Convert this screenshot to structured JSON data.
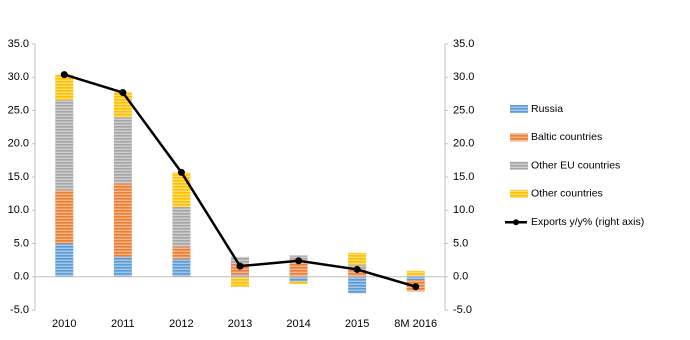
{
  "chart_data": {
    "type": "bar-line",
    "categories": [
      "2010",
      "2011",
      "2012",
      "2013",
      "2014",
      "2015",
      "8M 2016"
    ],
    "series": [
      {
        "name": "Russia",
        "color": "#5b9bd5",
        "values": [
          5.0,
          3.0,
          2.7,
          0.3,
          -0.7,
          -2.5,
          -0.5
        ]
      },
      {
        "name": "Baltic countries",
        "color": "#ed7d31",
        "values": [
          8.0,
          11.0,
          1.8,
          1.7,
          2.0,
          1.0,
          -1.7
        ]
      },
      {
        "name": "Other EU countries",
        "color": "#a5a5a5",
        "values": [
          13.6,
          10.0,
          6.0,
          1.0,
          1.2,
          0.8,
          0.2
        ]
      },
      {
        "name": "Other countries",
        "color": "#ffc000",
        "values": [
          3.8,
          3.8,
          5.2,
          -1.5,
          -0.4,
          1.8,
          0.7
        ]
      },
      {
        "name": "Exports y/y% (right axis)",
        "color": "#000000",
        "type": "line",
        "axis": "y2",
        "values": [
          30.4,
          27.7,
          15.7,
          1.6,
          2.4,
          1.1,
          -1.5
        ]
      }
    ],
    "ylim": [
      -5,
      35
    ],
    "yticks": [
      {
        "value": -5,
        "label": "-5.0"
      },
      {
        "value": 0,
        "label": "0.0"
      },
      {
        "value": 5,
        "label": "5.0"
      },
      {
        "value": 10,
        "label": "10.0"
      },
      {
        "value": 15,
        "label": "15.0"
      },
      {
        "value": 20,
        "label": "20.0"
      },
      {
        "value": 25,
        "label": "25.0"
      },
      {
        "value": 30,
        "label": "30.0"
      },
      {
        "value": 35,
        "label": "35.0"
      }
    ],
    "y2lim": [
      -5,
      35
    ],
    "y2ticks": [
      {
        "value": -5,
        "label": "-5.0"
      },
      {
        "value": 0,
        "label": "0.0"
      },
      {
        "value": 5,
        "label": "5.0"
      },
      {
        "value": 10,
        "label": "10.0"
      },
      {
        "value": 15,
        "label": "15.0"
      },
      {
        "value": 20,
        "label": "20.0"
      },
      {
        "value": 25,
        "label": "25.0"
      },
      {
        "value": 30,
        "label": "30.0"
      },
      {
        "value": 35,
        "label": "35.0"
      }
    ],
    "legend": "right"
  }
}
